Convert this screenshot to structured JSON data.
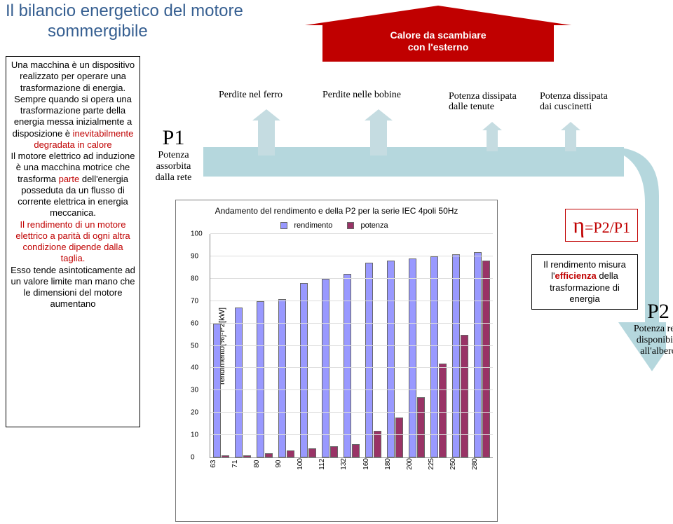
{
  "title_line1": "Il bilancio energetico del motore",
  "title_line2": "sommergibile",
  "explain": {
    "p1": "Una macchina è un dispositivo realizzato per operare una trasformazione di energia.",
    "p2a": "Sempre quando si opera una trasformazione parte della energia messa inizialmente a disposizione è",
    "p2red": " inevitabilmente degradata in calore",
    "p3": "Il motore elettrico ad induzione è una macchina motrice che trasforma",
    "p3red": " parte ",
    "p3b": "dell'energia posseduta da un flusso di corrente elettrica in energia meccanica.",
    "p4red": "Il rendimento di un motore elettrico a parità di ogni altra condizione dipende dalla taglia.",
    "p4": "Esso tende asintoticamente ad un valore limite man mano che le dimensioni del motore aumentano"
  },
  "p1": {
    "sym": "P1",
    "l1": "Potenza",
    "l2": "assorbita",
    "l3": "dalla rete"
  },
  "heat": {
    "l1": "Calore da scambiare",
    "l2": "con l'esterno"
  },
  "losses": {
    "ferro": "Perdite nel ferro",
    "bobine": "Perdite nelle bobine",
    "tenute_l1": "Potenza dissipata",
    "tenute_l2": "dalle tenute",
    "cusc_l1": "Potenza dissipata",
    "cusc_l2": "dai cuscinetti"
  },
  "eta": "=P2/P1",
  "eff": {
    "t1": "Il rendimento misura l'",
    "red": "efficienza",
    "t2": " della trasformazione di energia"
  },
  "p2": {
    "sym": "P2",
    "l1": "Potenza resa",
    "l2": "disponibile",
    "l3": "all'albero"
  },
  "flow_color": "#b5d7dd",
  "arrow_colors": {
    "ferro": "#c5dce1",
    "bobine": "#c5dce1",
    "tenute": "#c5dce1",
    "cusc": "#c5dce1"
  },
  "chart": {
    "title": "Andamento del rendimento e della P2 per la serie IEC 4poli 50Hz",
    "legend": {
      "rend": "rendimento",
      "pot": "potenza"
    },
    "ylabel": "rendimento[%]-P2[kW]",
    "ymin": 0,
    "ymax": 100,
    "ystep": 10,
    "colors": {
      "rend": "#9999ff",
      "pot": "#993366",
      "border": "#666666"
    },
    "categories": [
      "63",
      "71",
      "80",
      "90",
      "100",
      "112",
      "132",
      "160",
      "180",
      "200",
      "225",
      "250",
      "280"
    ],
    "rendimento": [
      60,
      67,
      70,
      71,
      78,
      80,
      82,
      87,
      88,
      89,
      90,
      91,
      92
    ],
    "potenza": [
      1,
      1,
      2,
      3,
      4,
      5,
      6,
      12,
      18,
      27,
      42,
      55,
      88
    ]
  }
}
